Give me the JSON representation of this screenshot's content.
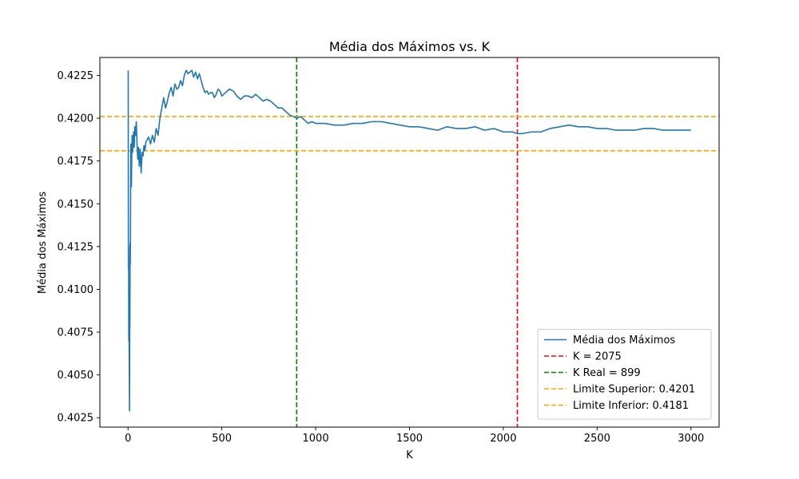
{
  "chart_data": {
    "type": "line",
    "title": "Média dos Máximos vs. K",
    "xlabel": "K",
    "ylabel": "Média dos Máximos",
    "xlim": [
      -150,
      3150
    ],
    "ylim": [
      0.40195,
      0.42355
    ],
    "xticks": [
      0,
      500,
      1000,
      1500,
      2000,
      2500,
      3000
    ],
    "yticks": [
      0.4025,
      0.405,
      0.4075,
      0.41,
      0.4125,
      0.415,
      0.4175,
      0.42,
      0.4225
    ],
    "xtick_labels": [
      "0",
      "500",
      "1000",
      "1500",
      "2000",
      "2500",
      "3000"
    ],
    "ytick_labels": [
      "0.4025",
      "0.4050",
      "0.4075",
      "0.4100",
      "0.4125",
      "0.4150",
      "0.4175",
      "0.4200",
      "0.4225"
    ],
    "grid": false,
    "legend_position": "lower-right",
    "series": [
      {
        "name": "Média dos Máximos",
        "color": "#1f77b4",
        "style": "solid",
        "x": [
          1,
          2,
          3,
          4,
          5,
          6,
          7,
          8,
          9,
          10,
          11,
          12,
          13,
          14,
          15,
          16,
          18,
          20,
          22,
          24,
          26,
          28,
          30,
          33,
          36,
          40,
          44,
          48,
          52,
          56,
          60,
          65,
          70,
          75,
          80,
          85,
          90,
          95,
          100,
          110,
          120,
          130,
          140,
          150,
          160,
          170,
          180,
          190,
          200,
          210,
          220,
          230,
          240,
          250,
          260,
          270,
          280,
          290,
          300,
          310,
          320,
          330,
          340,
          350,
          360,
          370,
          380,
          390,
          400,
          410,
          420,
          430,
          440,
          450,
          460,
          470,
          480,
          490,
          500,
          520,
          540,
          560,
          580,
          600,
          620,
          640,
          660,
          680,
          700,
          720,
          740,
          760,
          780,
          800,
          820,
          840,
          860,
          880,
          900,
          920,
          940,
          960,
          980,
          1000,
          1050,
          1100,
          1150,
          1200,
          1250,
          1300,
          1350,
          1400,
          1450,
          1500,
          1550,
          1600,
          1650,
          1700,
          1750,
          1800,
          1850,
          1900,
          1950,
          2000,
          2050,
          2075,
          2100,
          2150,
          2200,
          2250,
          2300,
          2350,
          2400,
          2450,
          2500,
          2550,
          2600,
          2650,
          2700,
          2750,
          2800,
          2850,
          2900,
          2950,
          3000
        ],
        "y": [
          0.4228,
          0.4112,
          0.4125,
          0.407,
          0.4076,
          0.4068,
          0.405,
          0.4029,
          0.4075,
          0.408,
          0.4127,
          0.4115,
          0.413,
          0.4165,
          0.4185,
          0.4172,
          0.416,
          0.4178,
          0.419,
          0.418,
          0.4183,
          0.4188,
          0.4192,
          0.4183,
          0.4195,
          0.419,
          0.4198,
          0.4185,
          0.4176,
          0.4183,
          0.4172,
          0.4182,
          0.4168,
          0.418,
          0.4178,
          0.4184,
          0.4181,
          0.4186,
          0.4187,
          0.4189,
          0.4185,
          0.419,
          0.4186,
          0.4194,
          0.419,
          0.42,
          0.4206,
          0.4212,
          0.4206,
          0.421,
          0.4215,
          0.4218,
          0.4213,
          0.422,
          0.4217,
          0.4218,
          0.4222,
          0.4219,
          0.4225,
          0.4228,
          0.4226,
          0.4227,
          0.4228,
          0.4224,
          0.4227,
          0.4223,
          0.4226,
          0.4222,
          0.4218,
          0.4215,
          0.4216,
          0.4214,
          0.4215,
          0.4215,
          0.4212,
          0.4214,
          0.4217,
          0.4216,
          0.4213,
          0.4215,
          0.4217,
          0.4216,
          0.4213,
          0.4211,
          0.4213,
          0.4213,
          0.4212,
          0.4214,
          0.4212,
          0.421,
          0.4211,
          0.421,
          0.4208,
          0.4206,
          0.4206,
          0.4204,
          0.4202,
          0.4201,
          0.42,
          0.4201,
          0.4199,
          0.4197,
          0.4198,
          0.4197,
          0.4197,
          0.4196,
          0.4196,
          0.4197,
          0.4197,
          0.4198,
          0.4198,
          0.4197,
          0.4196,
          0.4195,
          0.4195,
          0.4194,
          0.4193,
          0.4195,
          0.4194,
          0.4194,
          0.4195,
          0.4193,
          0.4194,
          0.4192,
          0.4192,
          0.4191,
          0.4191,
          0.4192,
          0.4192,
          0.4194,
          0.4195,
          0.4196,
          0.4195,
          0.4195,
          0.4194,
          0.4194,
          0.4193,
          0.4193,
          0.4193,
          0.4194,
          0.4194,
          0.4193,
          0.4193,
          0.4193,
          0.4193
        ]
      },
      {
        "name": "K = 2075",
        "color": "#ff0000",
        "style": "dashed",
        "orientation": "vertical",
        "value": 2075
      },
      {
        "name": "K Real = 899",
        "color": "#008000",
        "style": "dashed",
        "orientation": "vertical",
        "value": 899
      },
      {
        "name": "Limite Superior: 0.4201",
        "color": "#ffa500",
        "style": "dashed",
        "orientation": "horizontal",
        "value": 0.4201
      },
      {
        "name": "Limite Inferior: 0.4181",
        "color": "#ffa500",
        "style": "dashed",
        "orientation": "horizontal",
        "value": 0.4181
      }
    ]
  }
}
